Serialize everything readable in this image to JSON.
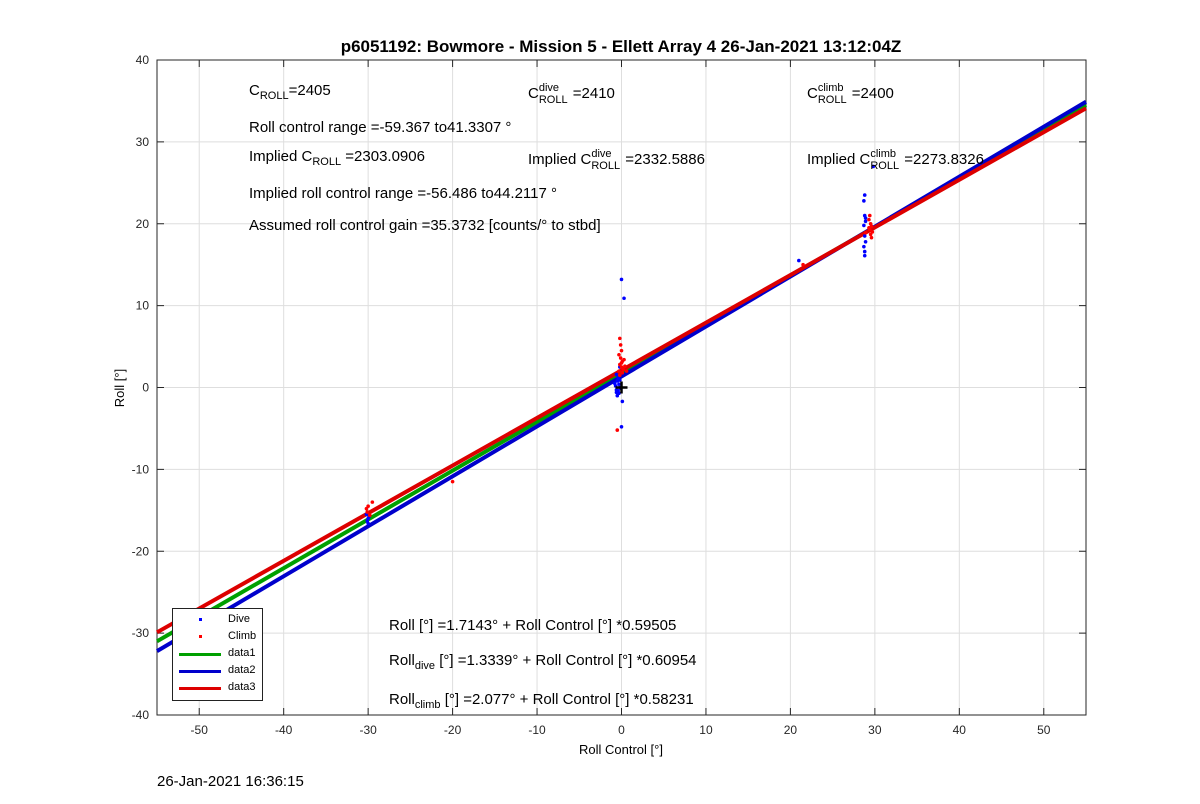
{
  "chart_data": {
    "type": "scatter",
    "title": "p6051192: Bowmore - Mission 5 - Ellett Array 4 26-Jan-2021 13:12:04Z",
    "xlabel": "Roll Control [°]",
    "ylabel": "Roll [°]",
    "xlim": [
      -55,
      55
    ],
    "ylim": [
      -40,
      40
    ],
    "xticks": [
      -50,
      -40,
      -30,
      -20,
      -10,
      0,
      10,
      20,
      30,
      40,
      50
    ],
    "yticks": [
      -40,
      -30,
      -20,
      -10,
      0,
      10,
      20,
      30,
      40
    ],
    "grid": true,
    "legend_position": "bottom-left",
    "series": [
      {
        "name": "Dive",
        "kind": "points",
        "color": "#0000ff",
        "points": [
          [
            -50.0,
            -28.0
          ],
          [
            -30.1,
            -16.3
          ],
          [
            -30.0,
            -16.6
          ],
          [
            -29.9,
            -15.8
          ],
          [
            -30.2,
            -15.5
          ],
          [
            -30.0,
            -16.0
          ],
          [
            -0.8,
            0.5
          ],
          [
            -0.6,
            -0.3
          ],
          [
            -0.5,
            0.8
          ],
          [
            -0.4,
            1.2
          ],
          [
            -0.7,
            0.2
          ],
          [
            -0.3,
            -0.7
          ],
          [
            -0.2,
            0.0
          ],
          [
            -0.5,
            -1.0
          ],
          [
            -0.6,
            1.6
          ],
          [
            -0.4,
            -0.4
          ],
          [
            -0.3,
            0.4
          ],
          [
            -0.1,
            -0.1
          ],
          [
            -0.6,
            -0.6
          ],
          [
            -0.2,
            0.9
          ],
          [
            0.0,
            13.2
          ],
          [
            0.3,
            10.9
          ],
          [
            0.0,
            -4.8
          ],
          [
            0.1,
            -1.7
          ],
          [
            -0.2,
            2.5
          ],
          [
            21.0,
            15.5
          ],
          [
            28.8,
            23.5
          ],
          [
            28.7,
            22.8
          ],
          [
            28.8,
            21.0
          ],
          [
            28.9,
            20.3
          ],
          [
            28.7,
            19.8
          ],
          [
            28.8,
            18.5
          ],
          [
            28.9,
            17.8
          ],
          [
            28.7,
            17.2
          ],
          [
            28.8,
            16.6
          ],
          [
            28.8,
            16.1
          ],
          [
            28.9,
            20.7
          ],
          [
            29.8,
            27.0
          ]
        ]
      },
      {
        "name": "Climb",
        "kind": "points",
        "color": "#ff0000",
        "points": [
          [
            -29.5,
            -14.0
          ],
          [
            -30.0,
            -14.5
          ],
          [
            -30.1,
            -15.2
          ],
          [
            -29.8,
            -15.6
          ],
          [
            -30.2,
            -14.8
          ],
          [
            -20.0,
            -11.5
          ],
          [
            -0.2,
            6.0
          ],
          [
            -0.1,
            5.2
          ],
          [
            0.0,
            4.5
          ],
          [
            -0.3,
            4.0
          ],
          [
            -0.1,
            3.6
          ],
          [
            0.1,
            3.2
          ],
          [
            -0.2,
            2.8
          ],
          [
            0.0,
            2.5
          ],
          [
            0.2,
            2.2
          ],
          [
            -0.3,
            2.0
          ],
          [
            0.1,
            1.8
          ],
          [
            -0.2,
            1.5
          ],
          [
            0.0,
            3.0
          ],
          [
            0.3,
            3.4
          ],
          [
            0.6,
            2.0
          ],
          [
            0.4,
            2.6
          ],
          [
            -0.5,
            -5.2
          ],
          [
            21.5,
            15.0
          ],
          [
            29.3,
            20.5
          ],
          [
            29.5,
            20.0
          ],
          [
            29.6,
            19.7
          ],
          [
            29.4,
            19.3
          ],
          [
            29.7,
            19.0
          ],
          [
            29.5,
            18.7
          ],
          [
            29.6,
            18.3
          ],
          [
            29.4,
            21.0
          ],
          [
            29.3,
            19.5
          ],
          [
            28.9,
            18.9
          ]
        ]
      },
      {
        "name": "data1",
        "kind": "line",
        "color": "#00a000",
        "x": [
          -55,
          55
        ],
        "y": [
          -31.0,
          34.5
        ]
      },
      {
        "name": "data2",
        "kind": "line",
        "color": "#0000cc",
        "x": [
          -55,
          55
        ],
        "y": [
          -32.2,
          34.9
        ]
      },
      {
        "name": "data3",
        "kind": "line",
        "color": "#dd0000",
        "x": [
          -55,
          55
        ],
        "y": [
          -29.9,
          34.1
        ]
      }
    ],
    "marker": {
      "x": 0,
      "y": 0,
      "symbol": "+",
      "color": "#000000"
    }
  },
  "annotations": {
    "c_roll": {
      "c": "C",
      "sub": "ROLL",
      "value": "=2405"
    },
    "c_roll_dive": {
      "c": "C",
      "sup": "dive",
      "sub": "ROLL",
      "value": "=2410"
    },
    "c_roll_climb": {
      "c": "C",
      "sup": "climb",
      "sub": "ROLL",
      "value": "=2400"
    },
    "roll_control_range": "Roll control range =-59.367 to41.3307 °",
    "implied_c_roll": {
      "prefix": "Implied C",
      "sub": "ROLL",
      "value": "=2303.0906"
    },
    "implied_c_roll_dive": {
      "prefix": "Implied C",
      "sup": "dive",
      "sub": "ROLL",
      "value": "=2332.5886"
    },
    "implied_c_roll_climb": {
      "prefix": "Implied C",
      "sup": "climb",
      "sub": "ROLL",
      "value": "=2273.8326"
    },
    "implied_range": "Implied roll control range =-56.486 to44.2117 °",
    "assumed_gain": "Assumed roll control gain =35.3732 [counts/° to stbd]",
    "fit_all": "Roll [°] =1.7143° + Roll Control [°] *0.59505",
    "fit_dive": {
      "prefix": "Roll",
      "sub": "dive",
      "rest": "[°] =1.3339° + Roll Control [°] *0.60954"
    },
    "fit_climb": {
      "prefix": "Roll",
      "sub": "climb",
      "rest": "[°] =2.077° + Roll Control [°] *0.58231"
    }
  },
  "legend": [
    "Dive",
    "Climb",
    "data1",
    "data2",
    "data3"
  ],
  "footer_timestamp": "26-Jan-2021 16:36:15"
}
